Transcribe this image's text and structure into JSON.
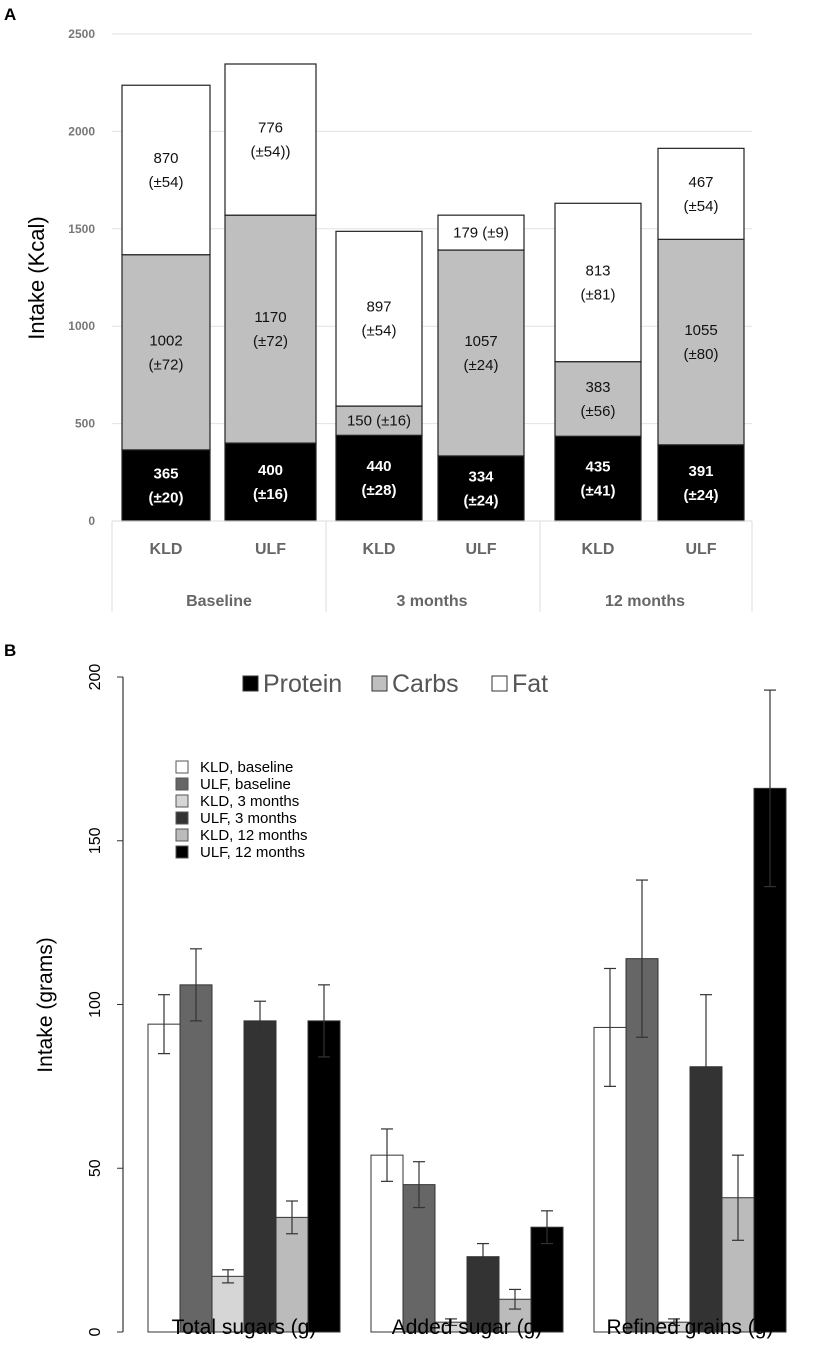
{
  "panel_labels": [
    "A",
    "B"
  ],
  "chart_data": [
    {
      "type": "bar",
      "stacked": true,
      "ylabel": "Intake (Kcal)",
      "ylim": [
        0,
        2500
      ],
      "yticks": [
        0,
        500,
        1000,
        1500,
        2000,
        2500
      ],
      "grid": true,
      "groups": [
        "Baseline",
        "3 months",
        "12 months"
      ],
      "categories": [
        "KLD",
        "ULF",
        "KLD",
        "ULF",
        "KLD",
        "ULF"
      ],
      "series": [
        {
          "name": "Protein",
          "color": "#000000",
          "text_color": "#ffffff",
          "values": [
            365,
            400,
            440,
            334,
            435,
            391
          ],
          "labels": [
            "365\n(±20)",
            "400\n(±16)",
            "440\n(±28)",
            "334\n(±24)",
            "435\n(±41)",
            "391\n(±24)"
          ]
        },
        {
          "name": "Carbs",
          "color": "#bfbfbf",
          "text_color": "#111111",
          "values": [
            1002,
            1170,
            150,
            1057,
            383,
            1055
          ],
          "labels": [
            "1002\n(±72)",
            "1170\n(±72)",
            "150 (±16)",
            "1057\n(±24)",
            "383\n(±56)",
            "1055\n(±80)"
          ]
        },
        {
          "name": "Fat",
          "color": "#ffffff",
          "text_color": "#111111",
          "values": [
            870,
            776,
            897,
            179,
            813,
            467
          ],
          "labels": [
            "870\n(±54)",
            "776\n(±54))",
            "897\n(±54)",
            "179 (±9)",
            "813\n(±81)",
            "467\n(±54)"
          ]
        }
      ]
    },
    {
      "type": "bar",
      "ylabel": "Intake (grams)",
      "ylim": [
        0,
        200
      ],
      "yticks": [
        0,
        50,
        100,
        150,
        200
      ],
      "grid": false,
      "legend_placement": "top-left",
      "top_legend": [
        {
          "name": "Protein",
          "color": "#000000"
        },
        {
          "name": "Carbs",
          "color": "#bfbfbf"
        },
        {
          "name": "Fat",
          "color": "#ffffff"
        }
      ],
      "categories": [
        "Total sugars (g)",
        "Added sugar (g)",
        "Refined grains (g)"
      ],
      "series": [
        {
          "name": "KLD, baseline",
          "color": "#ffffff",
          "values": [
            94,
            54,
            93
          ],
          "errors": [
            9,
            8,
            18
          ]
        },
        {
          "name": "ULF, baseline",
          "color": "#666666",
          "values": [
            106,
            45,
            114
          ],
          "errors": [
            11,
            7,
            24
          ]
        },
        {
          "name": "KLD, 3 months",
          "color": "#d6d6d6",
          "values": [
            17,
            3,
            3
          ],
          "errors": [
            2,
            1,
            1
          ]
        },
        {
          "name": "ULF, 3 months",
          "color": "#333333",
          "values": [
            95,
            23,
            81
          ],
          "errors": [
            6,
            4,
            22
          ]
        },
        {
          "name": "KLD, 12 months",
          "color": "#bbbbbb",
          "values": [
            35,
            10,
            41
          ],
          "errors": [
            5,
            3,
            13
          ]
        },
        {
          "name": "ULF, 12 months",
          "color": "#000000",
          "values": [
            95,
            32,
            166
          ],
          "errors": [
            11,
            5,
            30
          ]
        }
      ]
    }
  ]
}
